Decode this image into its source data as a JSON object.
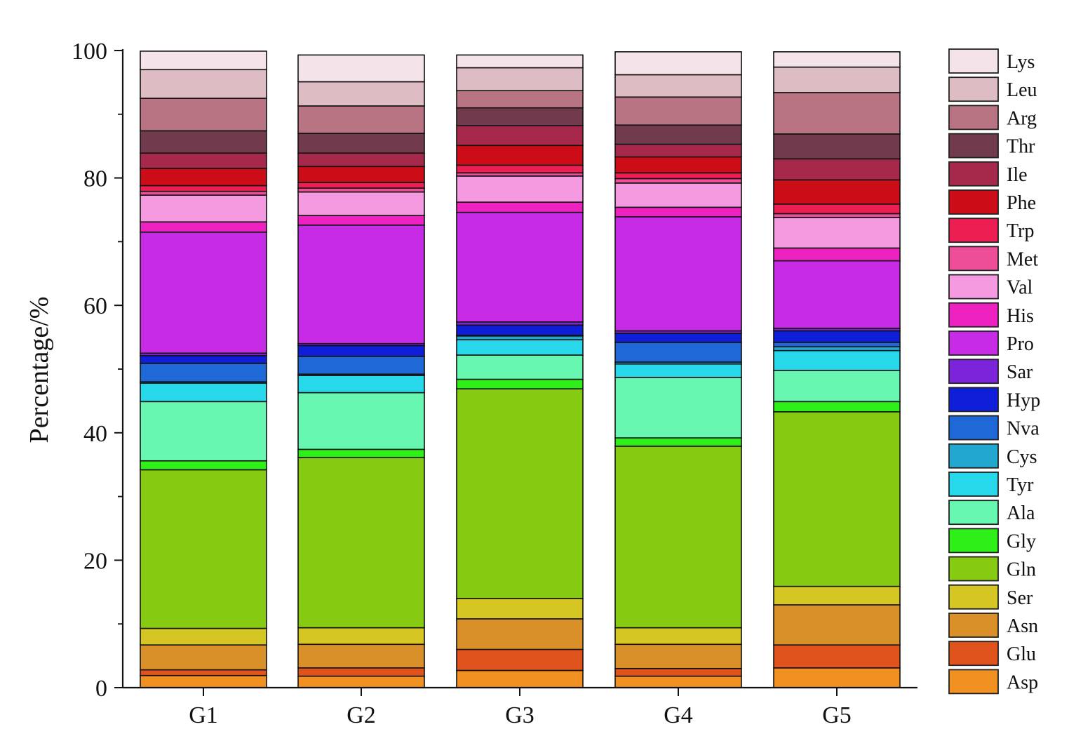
{
  "chart_data": {
    "type": "bar",
    "stacked": true,
    "title": "",
    "xlabel": "",
    "ylabel": "Percentage/%",
    "ylim": [
      0,
      100
    ],
    "yticks": [
      0,
      20,
      40,
      60,
      80,
      100
    ],
    "categories": [
      "G1",
      "G2",
      "G3",
      "G4",
      "G5"
    ],
    "legend_position": "right",
    "series": [
      {
        "name": "Asp",
        "color": "#EF9020",
        "values": [
          1.9,
          1.8,
          2.7,
          1.8,
          3.1
        ]
      },
      {
        "name": "Glu",
        "color": "#E0531C",
        "values": [
          0.9,
          1.3,
          3.3,
          1.2,
          3.6
        ]
      },
      {
        "name": "Asn",
        "color": "#DA9028",
        "values": [
          3.9,
          3.7,
          4.8,
          3.8,
          6.3
        ]
      },
      {
        "name": "Ser",
        "color": "#D6C624",
        "values": [
          2.6,
          2.6,
          3.2,
          2.6,
          2.9
        ]
      },
      {
        "name": "Gln",
        "color": "#86CA12",
        "values": [
          24.9,
          26.7,
          32.9,
          28.5,
          27.4
        ]
      },
      {
        "name": "Gly",
        "color": "#2EEF18",
        "values": [
          1.4,
          1.3,
          1.5,
          1.3,
          1.6
        ]
      },
      {
        "name": "Ala",
        "color": "#68F7B0",
        "values": [
          9.3,
          8.9,
          3.8,
          9.5,
          4.9
        ]
      },
      {
        "name": "Tyr",
        "color": "#26D8EA",
        "values": [
          2.9,
          2.7,
          2.4,
          2.1,
          3.1
        ]
      },
      {
        "name": "Cys",
        "color": "#22A8CF",
        "values": [
          0.2,
          0.2,
          0.6,
          0.3,
          0.6
        ]
      },
      {
        "name": "Nva",
        "color": "#1F68D8",
        "values": [
          2.9,
          2.8,
          0.1,
          3.1,
          0.7
        ]
      },
      {
        "name": "Hyp",
        "color": "#0F1ED9",
        "values": [
          1.2,
          1.7,
          1.6,
          1.4,
          1.8
        ]
      },
      {
        "name": "Sar",
        "color": "#7C24D9",
        "values": [
          0.4,
          0.3,
          0.5,
          0.4,
          0.4
        ]
      },
      {
        "name": "Pro",
        "color": "#C82BE6",
        "values": [
          19.0,
          18.6,
          17.2,
          17.9,
          10.6
        ]
      },
      {
        "name": "His",
        "color": "#EE22C0",
        "values": [
          1.6,
          1.5,
          1.6,
          1.5,
          2.0
        ]
      },
      {
        "name": "Val",
        "color": "#F59AE0",
        "values": [
          4.2,
          3.7,
          4.1,
          3.8,
          4.8
        ]
      },
      {
        "name": "Met",
        "color": "#EE4D97",
        "values": [
          0.6,
          0.6,
          0.5,
          0.7,
          0.6
        ]
      },
      {
        "name": "Trp",
        "color": "#EC1E52",
        "values": [
          0.9,
          0.9,
          1.2,
          0.9,
          1.5
        ]
      },
      {
        "name": "Phe",
        "color": "#CC0D18",
        "values": [
          2.7,
          2.5,
          3.1,
          2.5,
          3.8
        ]
      },
      {
        "name": "Ile",
        "color": "#A6284A",
        "values": [
          2.4,
          2.1,
          3.1,
          2.0,
          3.3
        ]
      },
      {
        "name": "Thr",
        "color": "#713B4D",
        "values": [
          3.5,
          3.1,
          2.8,
          3.0,
          3.9
        ]
      },
      {
        "name": "Arg",
        "color": "#B97483",
        "values": [
          5.1,
          4.3,
          2.7,
          4.4,
          6.5
        ]
      },
      {
        "name": "Leu",
        "color": "#DDBCC3",
        "values": [
          4.5,
          3.8,
          3.6,
          3.5,
          4.0
        ]
      },
      {
        "name": "Lys",
        "color": "#F4E3E8",
        "values": [
          2.9,
          4.2,
          2.0,
          3.6,
          2.4
        ]
      }
    ]
  }
}
